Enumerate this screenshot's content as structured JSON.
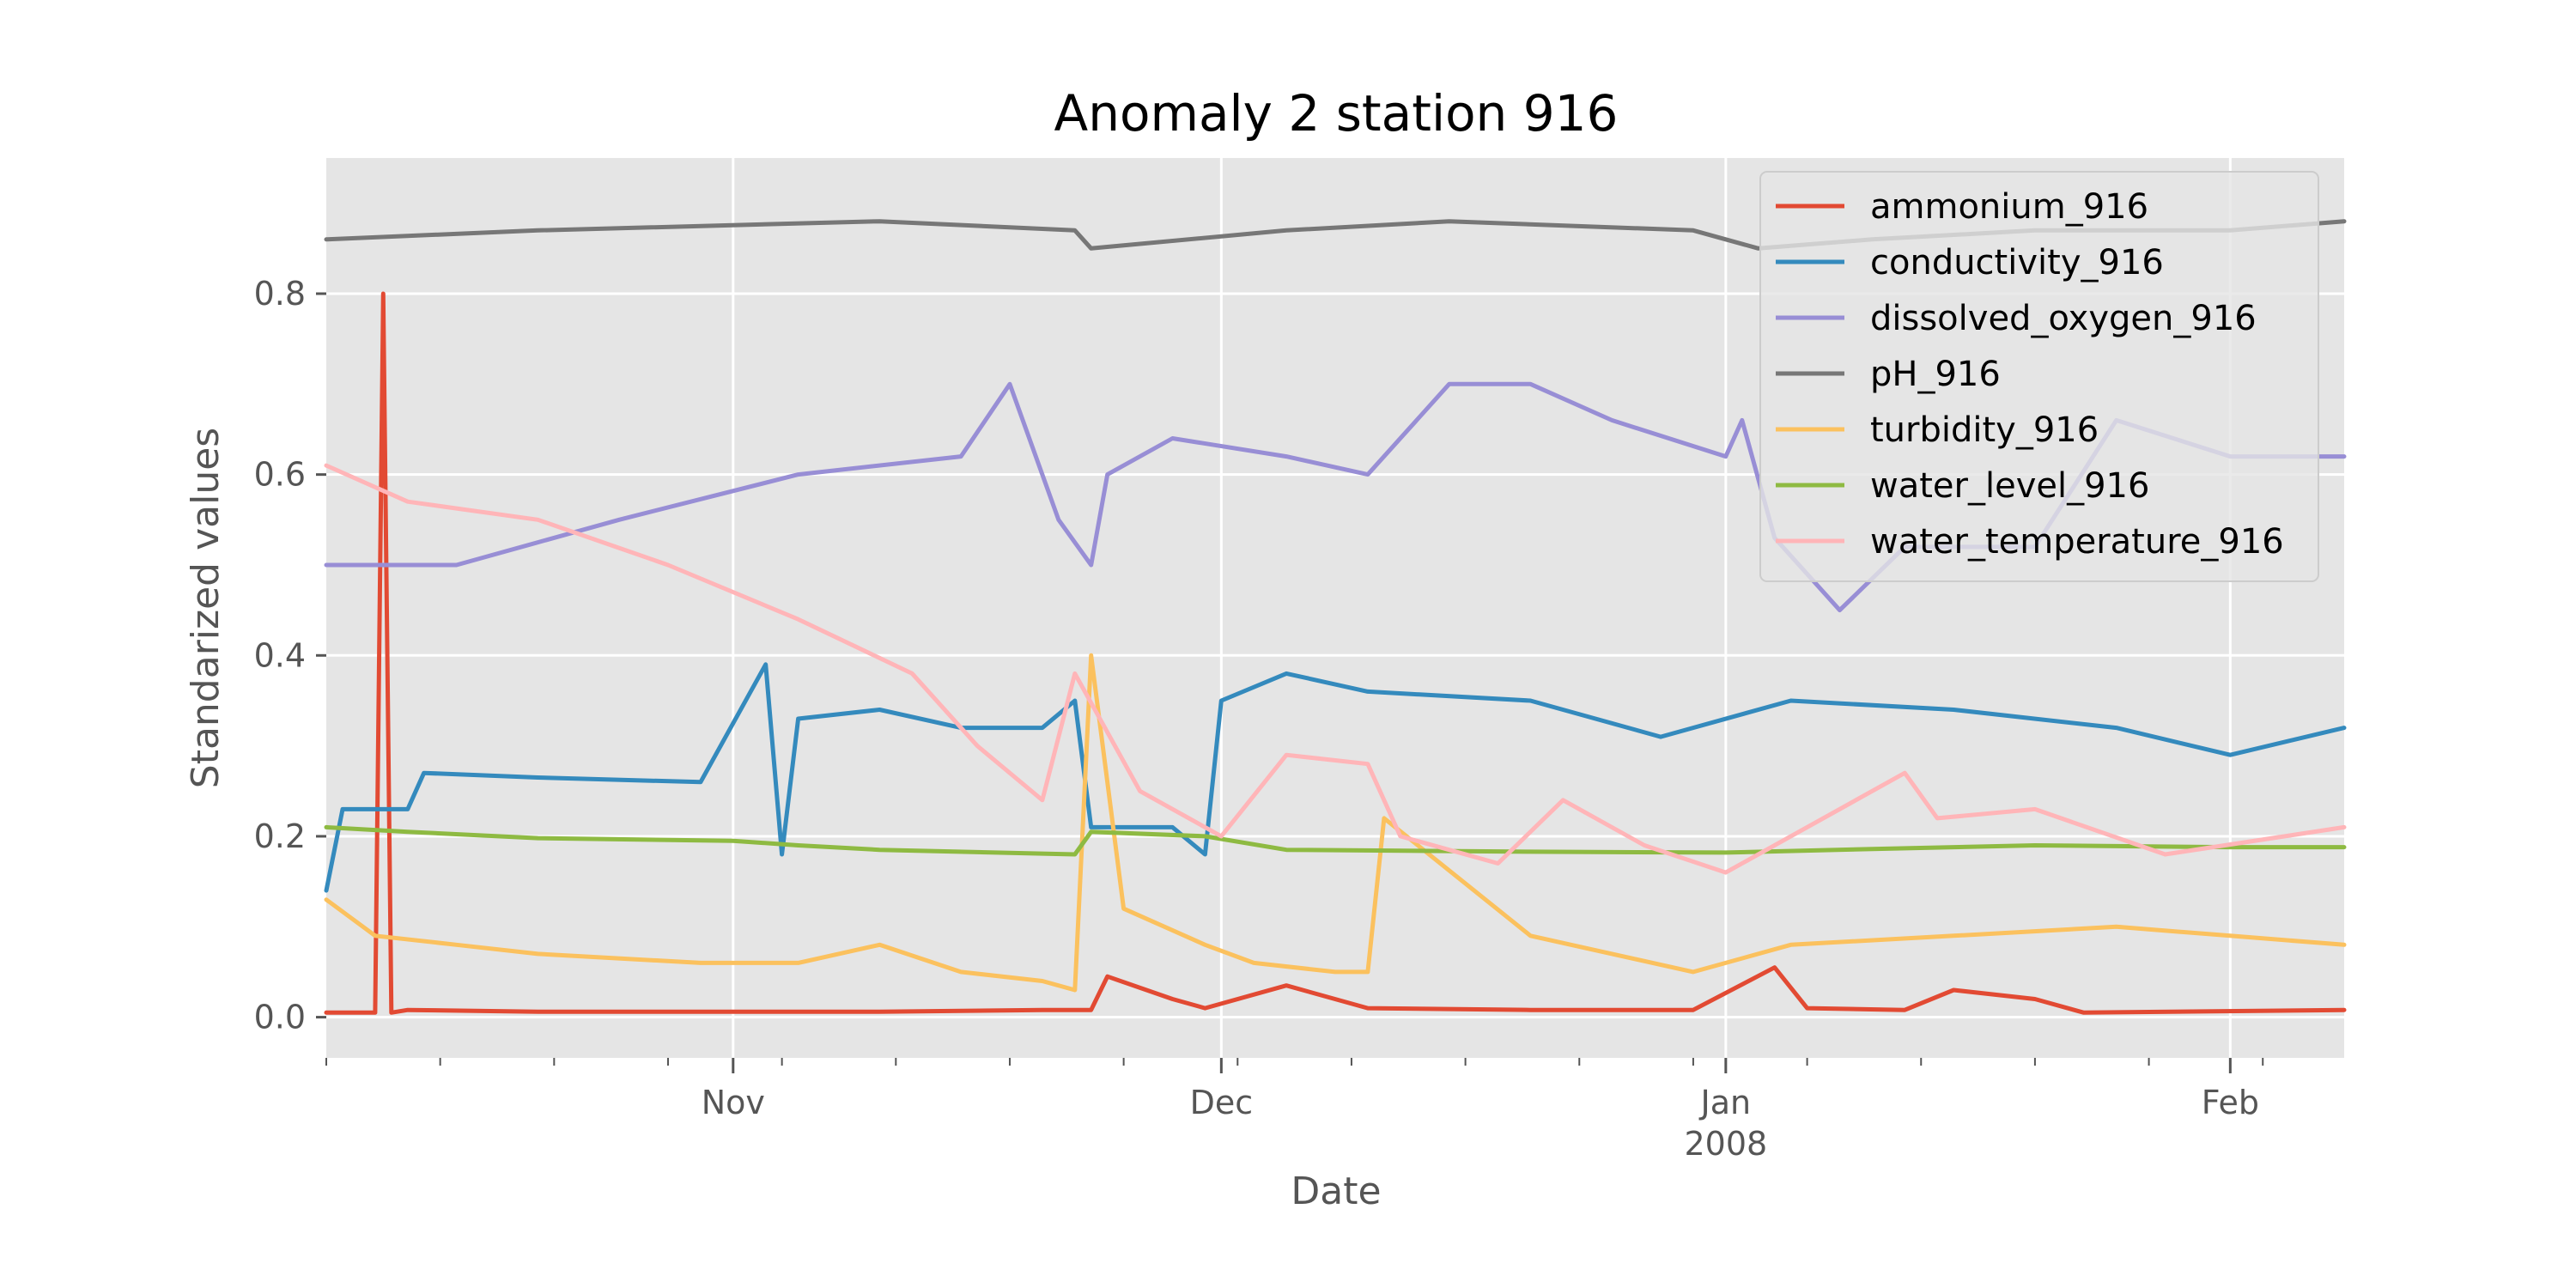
{
  "chart_data": {
    "type": "line",
    "title": "Anomaly 2 station 916",
    "xlabel": "Date",
    "ylabel": "Standarized values",
    "x_range": [
      "2007-10-07",
      "2008-02-08"
    ],
    "ylim": [
      -0.045,
      0.95
    ],
    "grid": true,
    "legend_position": "top-right",
    "x_ticks": [
      {
        "date": "2007-11-01",
        "label": "Nov",
        "sublabel": ""
      },
      {
        "date": "2007-12-01",
        "label": "Dec",
        "sublabel": ""
      },
      {
        "date": "2008-01-01",
        "label": "Jan",
        "sublabel": "2008"
      },
      {
        "date": "2008-02-01",
        "label": "Feb",
        "sublabel": ""
      }
    ],
    "y_ticks": [
      0.0,
      0.2,
      0.4,
      0.6,
      0.8
    ],
    "y_tick_labels": [
      "0.0",
      "0.2",
      "0.4",
      "0.6",
      "0.8"
    ],
    "series": [
      {
        "name": "ammonium_916",
        "color": "#E24A33",
        "x": [
          "2007-10-07",
          "2007-10-10",
          "2007-10-10T12:00",
          "2007-10-11",
          "2007-10-12",
          "2007-10-20",
          "2007-11-10",
          "2007-11-20",
          "2007-11-23",
          "2007-11-24",
          "2007-11-28",
          "2007-11-30",
          "2007-12-05",
          "2007-12-10",
          "2007-12-20",
          "2007-12-30",
          "2008-01-04",
          "2008-01-06",
          "2008-01-12",
          "2008-01-15",
          "2008-01-20",
          "2008-01-23",
          "2008-02-08"
        ],
        "y": [
          0.005,
          0.005,
          0.8,
          0.005,
          0.008,
          0.006,
          0.006,
          0.008,
          0.008,
          0.045,
          0.02,
          0.01,
          0.035,
          0.01,
          0.008,
          0.008,
          0.055,
          0.01,
          0.008,
          0.03,
          0.02,
          0.005,
          0.008
        ]
      },
      {
        "name": "conductivity_916",
        "color": "#348ABD",
        "x": [
          "2007-10-07",
          "2007-10-08",
          "2007-10-12",
          "2007-10-13",
          "2007-10-20",
          "2007-10-30",
          "2007-11-03",
          "2007-11-04",
          "2007-11-05",
          "2007-11-10",
          "2007-11-15",
          "2007-11-20",
          "2007-11-22",
          "2007-11-23",
          "2007-11-28",
          "2007-11-30",
          "2007-12-01",
          "2007-12-05",
          "2007-12-10",
          "2007-12-20",
          "2007-12-28",
          "2008-01-05",
          "2008-01-15",
          "2008-01-25",
          "2008-02-01",
          "2008-02-08"
        ],
        "y": [
          0.14,
          0.23,
          0.23,
          0.27,
          0.265,
          0.26,
          0.39,
          0.18,
          0.33,
          0.34,
          0.32,
          0.32,
          0.35,
          0.21,
          0.21,
          0.18,
          0.35,
          0.38,
          0.36,
          0.35,
          0.31,
          0.35,
          0.34,
          0.32,
          0.29,
          0.32
        ]
      },
      {
        "name": "dissolved_oxygen_916",
        "color": "#988ED5",
        "x": [
          "2007-10-07",
          "2007-10-15",
          "2007-10-25",
          "2007-11-05",
          "2007-11-15",
          "2007-11-18",
          "2007-11-21",
          "2007-11-23",
          "2007-11-24",
          "2007-11-28",
          "2007-12-05",
          "2007-12-10",
          "2007-12-15",
          "2007-12-20",
          "2007-12-25",
          "2008-01-01",
          "2008-01-02",
          "2008-01-04",
          "2008-01-08",
          "2008-01-12",
          "2008-01-20",
          "2008-01-25",
          "2008-02-01",
          "2008-02-08"
        ],
        "y": [
          0.5,
          0.5,
          0.55,
          0.6,
          0.62,
          0.7,
          0.55,
          0.5,
          0.6,
          0.64,
          0.62,
          0.6,
          0.7,
          0.7,
          0.66,
          0.62,
          0.66,
          0.53,
          0.45,
          0.52,
          0.52,
          0.66,
          0.62,
          0.62
        ]
      },
      {
        "name": "pH_916",
        "color": "#777777",
        "x": [
          "2007-10-07",
          "2007-10-20",
          "2007-11-10",
          "2007-11-22",
          "2007-11-23",
          "2007-12-05",
          "2007-12-15",
          "2007-12-30",
          "2008-01-03",
          "2008-01-10",
          "2008-01-20",
          "2008-02-01",
          "2008-02-08"
        ],
        "y": [
          0.86,
          0.87,
          0.88,
          0.87,
          0.85,
          0.87,
          0.88,
          0.87,
          0.85,
          0.86,
          0.87,
          0.87,
          0.88
        ]
      },
      {
        "name": "turbidity_916",
        "color": "#FBC15E",
        "x": [
          "2007-10-07",
          "2007-10-10",
          "2007-10-15",
          "2007-10-20",
          "2007-10-30",
          "2007-11-05",
          "2007-11-10",
          "2007-11-15",
          "2007-11-20",
          "2007-11-22",
          "2007-11-23",
          "2007-11-25",
          "2007-11-30",
          "2007-12-03",
          "2007-12-08",
          "2007-12-10",
          "2007-12-11",
          "2007-12-20",
          "2007-12-30",
          "2008-01-05",
          "2008-01-15",
          "2008-01-25",
          "2008-02-01",
          "2008-02-08"
        ],
        "y": [
          0.13,
          0.09,
          0.08,
          0.07,
          0.06,
          0.06,
          0.08,
          0.05,
          0.04,
          0.03,
          0.4,
          0.12,
          0.08,
          0.06,
          0.05,
          0.05,
          0.22,
          0.09,
          0.05,
          0.08,
          0.09,
          0.1,
          0.09,
          0.08
        ]
      },
      {
        "name": "water_level_916",
        "color": "#8EBA42",
        "x": [
          "2007-10-07",
          "2007-10-12",
          "2007-10-20",
          "2007-11-01",
          "2007-11-05",
          "2007-11-10",
          "2007-11-22",
          "2007-11-23",
          "2007-11-30",
          "2007-12-05",
          "2007-12-20",
          "2008-01-01",
          "2008-01-10",
          "2008-01-20",
          "2008-02-01",
          "2008-02-08"
        ],
        "y": [
          0.21,
          0.205,
          0.198,
          0.195,
          0.19,
          0.185,
          0.18,
          0.205,
          0.2,
          0.185,
          0.183,
          0.182,
          0.186,
          0.19,
          0.188,
          0.188
        ]
      },
      {
        "name": "water_temperature_916",
        "color": "#FFB5B8",
        "x": [
          "2007-10-07",
          "2007-10-12",
          "2007-10-20",
          "2007-10-28",
          "2007-11-05",
          "2007-11-12",
          "2007-11-16",
          "2007-11-20",
          "2007-11-22",
          "2007-11-26",
          "2007-12-01",
          "2007-12-05",
          "2007-12-10",
          "2007-12-12",
          "2007-12-18",
          "2007-12-22",
          "2007-12-27",
          "2008-01-01",
          "2008-01-05",
          "2008-01-12",
          "2008-01-14",
          "2008-01-20",
          "2008-01-28",
          "2008-02-08"
        ],
        "y": [
          0.61,
          0.57,
          0.55,
          0.5,
          0.44,
          0.38,
          0.3,
          0.24,
          0.38,
          0.25,
          0.2,
          0.29,
          0.28,
          0.2,
          0.17,
          0.24,
          0.19,
          0.16,
          0.2,
          0.27,
          0.22,
          0.23,
          0.18,
          0.21
        ]
      }
    ]
  }
}
